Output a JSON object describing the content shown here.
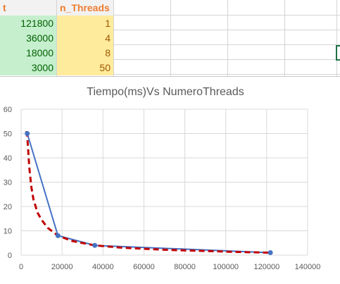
{
  "colors": {
    "green_fill": "#c6efce",
    "green_text": "#006100",
    "yellow_fill": "#ffeb9c",
    "yellow_text": "#9c5700",
    "header_fill": "#f2f2f2",
    "header_text": "#ed7d31",
    "grid": "#d9d9d9",
    "series_line": "#4472c4",
    "trendline": "#c00000"
  },
  "sheet": {
    "headers": [
      "t",
      "n_Threads"
    ],
    "rows": [
      {
        "t": "121800",
        "n_threads": "1"
      },
      {
        "t": "36000",
        "n_threads": "4"
      },
      {
        "t": "18000",
        "n_threads": "8"
      },
      {
        "t": "3000",
        "n_threads": "50"
      }
    ]
  },
  "chart_data": {
    "type": "scatter",
    "title": "Tiempo(ms)Vs NumeroThreads",
    "xlabel": "",
    "ylabel": "",
    "xlim": [
      0,
      140000
    ],
    "ylim": [
      0,
      60
    ],
    "xticks": [
      0,
      20000,
      40000,
      60000,
      80000,
      100000,
      120000,
      140000
    ],
    "yticks": [
      0,
      10,
      20,
      30,
      40,
      50,
      60
    ],
    "grid": true,
    "legend": "none",
    "series": [
      {
        "x": [
          3000,
          18000,
          36000,
          121800
        ],
        "y": [
          50,
          8,
          4,
          1
        ],
        "style": "line-markers"
      }
    ],
    "trendline": {
      "style": "dashed",
      "x": [
        2500,
        3000,
        4000,
        5000,
        6000,
        8000,
        10000,
        13000,
        18000,
        25000,
        36000,
        50000,
        70000,
        90000,
        105000,
        121800
      ],
      "y": [
        51,
        49,
        36,
        28,
        23,
        17.5,
        14.5,
        11.2,
        8,
        5.8,
        4,
        3,
        2.2,
        1.7,
        1.3,
        1
      ]
    }
  }
}
